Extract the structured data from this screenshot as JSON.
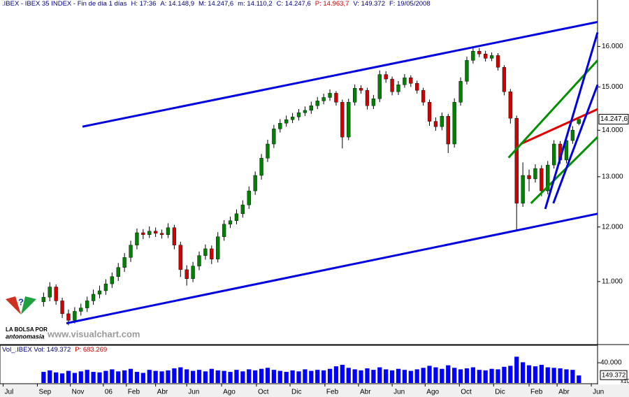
{
  "chart_data": [
    {
      "type": "candlestick",
      "header": [
        {
          "text": ".IBEX - IBEX 35 INDEX - Fin de día 1 días",
          "color": "#000080"
        },
        {
          "text": "H: 17:36",
          "color": "#000080"
        },
        {
          "text": "A: 14.148,9",
          "color": "#000080"
        },
        {
          "text": "M: 14.247,6",
          "color": "#000080"
        },
        {
          "text": "m: 14.110,2",
          "color": "#000080"
        },
        {
          "text": "C: 14.247,6",
          "color": "#000080"
        },
        {
          "text": "P: 14.963,7",
          "color": "#d00000"
        },
        {
          "text": "V: 149.372",
          "color": "#000080"
        },
        {
          "text": "F: 19/05/2008",
          "color": "#000080"
        }
      ],
      "xlim": [
        0,
        96
      ],
      "ylim": [
        9960,
        17000
      ],
      "log_scale": true,
      "yticks": [
        {
          "value": 11000,
          "label": "11.000"
        },
        {
          "value": 12000,
          "label": "12.000"
        },
        {
          "value": 13000,
          "label": "13.000"
        },
        {
          "value": 14000,
          "label": "14.000"
        },
        {
          "value": 15000,
          "label": "15.000"
        },
        {
          "value": 16000,
          "label": "16.000"
        }
      ],
      "last_label": "14.247,6",
      "up_color": "#008000",
      "down_color": "#d00000",
      "wick_color": "#000000",
      "x": [
        7,
        8,
        9,
        10,
        11,
        12,
        13,
        14,
        15,
        16,
        17,
        18,
        19,
        20,
        21,
        22,
        23,
        24,
        25,
        26,
        27,
        28,
        29,
        30,
        31,
        32,
        33,
        34,
        35,
        36,
        37,
        38,
        39,
        40,
        41,
        42,
        43,
        44,
        45,
        46,
        47,
        48,
        49,
        50,
        51,
        52,
        53,
        54,
        55,
        56,
        57,
        58,
        59,
        60,
        61,
        62,
        63,
        64,
        65,
        66,
        67,
        68,
        69,
        70,
        71,
        72,
        73,
        74,
        75,
        76,
        77,
        78,
        79,
        80,
        81,
        82,
        83,
        84,
        85,
        86,
        87,
        88,
        89,
        90,
        91,
        92,
        93
      ],
      "open": [
        10650,
        10730,
        10906,
        10667,
        10450,
        10340,
        10490,
        10547,
        10667,
        10780,
        10840,
        10960,
        11088,
        11250,
        11430,
        11658,
        11890,
        11853,
        11920,
        11880,
        11853,
        11986,
        11658,
        11210,
        11050,
        11275,
        11465,
        11590,
        11401,
        11815,
        12053,
        12120,
        12255,
        12430,
        12710,
        13027,
        13390,
        13696,
        14030,
        14159,
        14238,
        14300,
        14397,
        14450,
        14558,
        14670,
        14750,
        14850,
        14639,
        13848,
        14639,
        14968,
        14920,
        14558,
        14720,
        15300,
        15190,
        14885,
        15052,
        15220,
        15085,
        14920,
        14639,
        14200,
        14080,
        14317,
        13696,
        14639,
        15135,
        15648,
        15880,
        15810,
        15700,
        15770,
        15476,
        14885,
        14270,
        12461,
        13027,
        12955,
        13172,
        12710,
        13245,
        13696,
        13350,
        13772,
        14148.9
      ],
      "high": [
        10810,
        10990,
        10950,
        10720,
        10520,
        10560,
        10620,
        10740,
        10860,
        10930,
        11040,
        11160,
        11330,
        11510,
        11740,
        11970,
        11960,
        12010,
        11990,
        11950,
        12070,
        12040,
        11720,
        11290,
        11350,
        11540,
        11670,
        11650,
        11900,
        12130,
        12200,
        12340,
        12520,
        12800,
        13110,
        13480,
        13790,
        14120,
        14250,
        14330,
        14390,
        14480,
        14540,
        14650,
        14760,
        14840,
        14940,
        14900,
        14700,
        14720,
        15060,
        15040,
        14980,
        14810,
        15400,
        15380,
        15250,
        15140,
        15310,
        15280,
        15150,
        14980,
        14700,
        14290,
        14400,
        14370,
        14730,
        15230,
        15740,
        15990,
        15960,
        15890,
        15850,
        15830,
        15530,
        14950,
        14330,
        13300,
        13150,
        13260,
        13240,
        13330,
        13780,
        13760,
        13860,
        14090,
        14247.6
      ],
      "low": [
        10570,
        10660,
        10600,
        10380,
        10260,
        10290,
        10420,
        10480,
        10600,
        10710,
        10770,
        10890,
        11010,
        11170,
        11350,
        11580,
        11770,
        11790,
        11810,
        11780,
        11790,
        11580,
        11080,
        10930,
        10990,
        11200,
        11390,
        11310,
        11340,
        11740,
        11980,
        12050,
        12180,
        12350,
        12630,
        12940,
        13310,
        13610,
        13950,
        14080,
        14160,
        14220,
        14320,
        14370,
        14480,
        14590,
        14670,
        14560,
        13600,
        13780,
        14560,
        14840,
        14470,
        14480,
        14640,
        15100,
        14800,
        14810,
        14980,
        15000,
        14840,
        14560,
        14100,
        13990,
        14000,
        13500,
        13620,
        14560,
        15060,
        15570,
        15730,
        15620,
        15630,
        15400,
        14800,
        14150,
        11950,
        12390,
        12700,
        12880,
        12600,
        12640,
        13170,
        13270,
        13280,
        13700,
        14110.2
      ],
      "close": [
        10730,
        10906,
        10667,
        10450,
        10340,
        10490,
        10547,
        10667,
        10780,
        10840,
        10960,
        11088,
        11250,
        11430,
        11658,
        11890,
        11853,
        11920,
        11880,
        11853,
        11986,
        11658,
        11210,
        11050,
        11275,
        11465,
        11590,
        11401,
        11815,
        12053,
        12120,
        12255,
        12430,
        12710,
        13027,
        13390,
        13696,
        14030,
        14159,
        14238,
        14300,
        14397,
        14450,
        14558,
        14670,
        14750,
        14850,
        14639,
        13848,
        14639,
        14968,
        14920,
        14558,
        14720,
        15300,
        15190,
        14885,
        15052,
        15220,
        15085,
        14920,
        14639,
        14200,
        14080,
        14317,
        13696,
        14639,
        15135,
        15648,
        15880,
        15810,
        15700,
        15770,
        15476,
        14885,
        14270,
        12461,
        13027,
        12955,
        13172,
        12710,
        13245,
        13696,
        13350,
        13772,
        14003,
        14247.6
      ],
      "trendlines": [
        {
          "color": "#0000e0",
          "x": [
            13.25,
            96
          ],
          "y": [
            14080,
            16636
          ]
        },
        {
          "color": "#0000e0",
          "x": [
            10.67,
            96
          ],
          "y": [
            10293,
            12255
          ]
        },
        {
          "color": "#e00000",
          "x": [
            83.65,
            96
          ],
          "y": [
            13696,
            14477
          ]
        },
        {
          "color": "#009000",
          "x": [
            81.7,
            96
          ],
          "y": [
            13400,
            15648
          ]
        },
        {
          "color": "#009000",
          "x": [
            85.3,
            96
          ],
          "y": [
            12461,
            13848
          ]
        },
        {
          "color": "#0000e0",
          "x": [
            87.6,
            96
          ],
          "y": [
            12350,
            16360
          ]
        },
        {
          "color": "#0000e0",
          "x": [
            88.9,
            96
          ],
          "y": [
            12461,
            15052
          ]
        }
      ]
    },
    {
      "type": "bar",
      "header": [
        {
          "text": "Vol_.IBEX Vol: 149.372",
          "color": "#000080"
        },
        {
          "text": "P: 683.269",
          "color": "#d00000"
        }
      ],
      "color": "#0000ff",
      "xlim": [
        0,
        96
      ],
      "ylim": [
        0,
        69000
      ],
      "yticks": [
        {
          "value": 40000,
          "label": "40.000"
        }
      ],
      "last_label": "149.372",
      "scale_note": "x10",
      "xticks": [
        {
          "value": 0.5,
          "label": "Jul"
        },
        {
          "value": 6,
          "label": "Sep"
        },
        {
          "value": 11.3,
          "label": "Nov"
        },
        {
          "value": 16.6,
          "label": "06"
        },
        {
          "value": 20.3,
          "label": "Feb"
        },
        {
          "value": 25,
          "label": "Abr"
        },
        {
          "value": 30,
          "label": "Jun"
        },
        {
          "value": 35.6,
          "label": "Ago"
        },
        {
          "value": 41.2,
          "label": "Oct"
        },
        {
          "value": 46.6,
          "label": "Dic"
        },
        {
          "value": 52.2,
          "label": "Feb"
        },
        {
          "value": 57.6,
          "label": "Abr"
        },
        {
          "value": 63,
          "label": "Jun"
        },
        {
          "value": 68.3,
          "label": "Ago"
        },
        {
          "value": 73.8,
          "label": "Oct"
        },
        {
          "value": 79.3,
          "label": "Dic"
        },
        {
          "value": 85,
          "label": "Feb"
        },
        {
          "value": 89.5,
          "label": "Abr"
        },
        {
          "value": 95,
          "label": "Jun"
        }
      ],
      "x": [
        7,
        8,
        9,
        10,
        11,
        12,
        13,
        14,
        15,
        16,
        17,
        18,
        19,
        20,
        21,
        22,
        23,
        24,
        25,
        26,
        27,
        28,
        29,
        30,
        31,
        32,
        33,
        34,
        35,
        36,
        37,
        38,
        39,
        40,
        41,
        42,
        43,
        44,
        45,
        46,
        47,
        48,
        49,
        50,
        51,
        52,
        53,
        54,
        55,
        56,
        57,
        58,
        59,
        60,
        61,
        62,
        63,
        64,
        65,
        66,
        67,
        68,
        69,
        70,
        71,
        72,
        73,
        74,
        75,
        76,
        77,
        78,
        79,
        80,
        81,
        82,
        83,
        84,
        85,
        86,
        87,
        88,
        89,
        90,
        91,
        92,
        93
      ],
      "values": [
        22000,
        25000,
        21000,
        19000,
        24000,
        20000,
        23000,
        26000,
        22000,
        21000,
        24000,
        27000,
        23000,
        25000,
        28000,
        22000,
        20000,
        26000,
        24000,
        23000,
        25000,
        29000,
        31000,
        27000,
        24000,
        26000,
        23000,
        28000,
        25000,
        24000,
        22000,
        26000,
        23000,
        27000,
        25000,
        28000,
        30000,
        26000,
        24000,
        22000,
        25000,
        23000,
        27000,
        24000,
        26000,
        25000,
        28000,
        33000,
        36000,
        30000,
        27000,
        25000,
        29000,
        26000,
        31000,
        27000,
        25000,
        28000,
        26000,
        24000,
        27000,
        30000,
        34000,
        31000,
        28000,
        35000,
        30000,
        27000,
        29000,
        31000,
        26000,
        25000,
        28000,
        27000,
        32000,
        34000,
        52000,
        41000,
        35000,
        33000,
        36000,
        31000,
        30000,
        29000,
        27000,
        26000,
        14937.2
      ]
    }
  ],
  "logo": {
    "line1": "LA BOLSA POR",
    "line2": "antonomasia"
  },
  "watermark": "www.visualchart.com"
}
